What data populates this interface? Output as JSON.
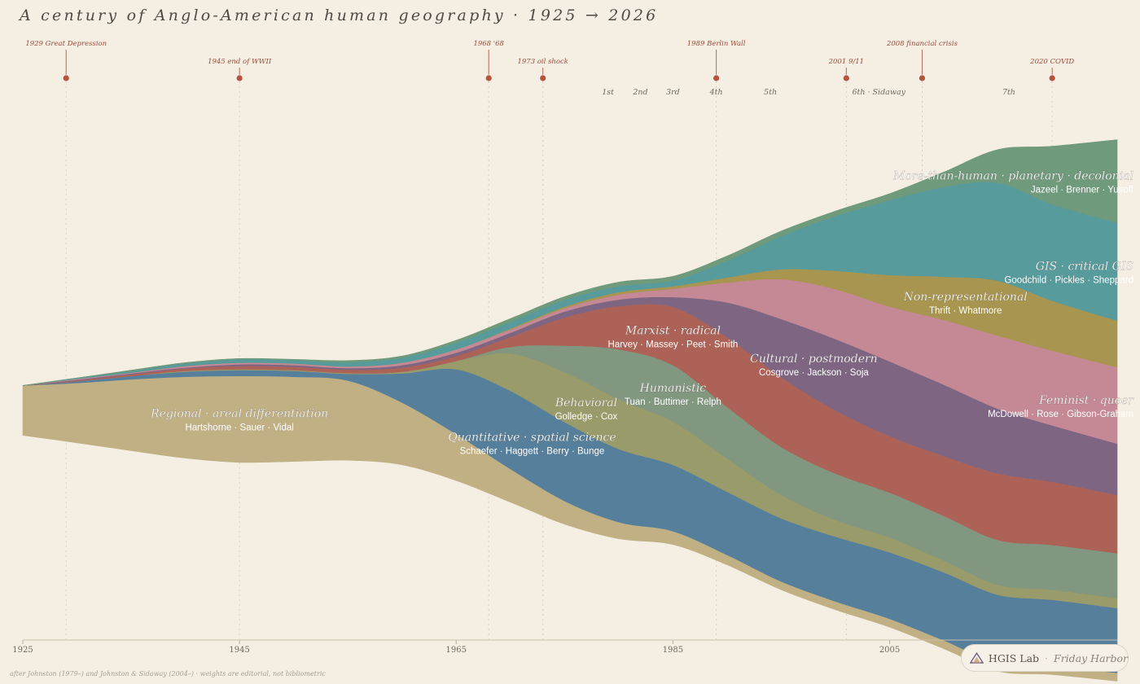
{
  "title": "A century of Anglo-American human geography · 1925 → 2026",
  "footnote": "after Johnston (1979–) and Johnston & Sidaway (2004–) · weights are editorial, not bibliometric",
  "badge": {
    "brand": "HGIS Lab",
    "separator": "·",
    "location": "Friday Harbor",
    "logo_icon": "triangle-logo-icon"
  },
  "chart_data": {
    "type": "area",
    "subtype": "streamgraph",
    "x_range": [
      1925,
      2026
    ],
    "x_ticks": [
      1925,
      1945,
      1965,
      1985,
      2005
    ],
    "x_tick_labels": [
      "1925",
      "1945",
      "1965",
      "1985",
      "2005"
    ],
    "events": [
      {
        "year": 1929,
        "label": "1929 Great Depression"
      },
      {
        "year": 1945,
        "label": "1945 end of WWII"
      },
      {
        "year": 1968,
        "label": "1968 '68"
      },
      {
        "year": 1973,
        "label": "1973 oil shock"
      },
      {
        "year": 1989,
        "label": "1989 Berlin Wall"
      },
      {
        "year": 2001,
        "label": "2001 9/11"
      },
      {
        "year": 2008,
        "label": "2008 financial crisis"
      },
      {
        "year": 2020,
        "label": "2020 COVID"
      }
    ],
    "editions": [
      {
        "year": 1979,
        "label": "1st"
      },
      {
        "year": 1982,
        "label": "2nd"
      },
      {
        "year": 1985,
        "label": "3rd"
      },
      {
        "year": 1989,
        "label": "4th"
      },
      {
        "year": 1994,
        "label": "5th"
      },
      {
        "year": 2004,
        "label": "6th · Sidaway"
      },
      {
        "year": 2016,
        "label": "7th"
      }
    ],
    "x": [
      1925,
      1930,
      1935,
      1940,
      1945,
      1950,
      1955,
      1960,
      1965,
      1970,
      1975,
      1980,
      1985,
      1990,
      1995,
      2000,
      2005,
      2010,
      2015,
      2020,
      2026
    ],
    "series": [
      {
        "name": "Regional · areal differentiation",
        "authors": "Hartshorne · Sauer · Vidal",
        "color": "#c0b084",
        "values": [
          60,
          72,
          86,
          98,
          104,
          102,
          96,
          75,
          56,
          40,
          28,
          20,
          16,
          12,
          10,
          10,
          10,
          10,
          10,
          10,
          10
        ]
      },
      {
        "name": "Quantitative · spatial science",
        "authors": "Schaefer · Haggett · Berry · Bunge",
        "color": "#567f9c",
        "values": [
          0,
          2,
          4,
          6,
          7,
          7,
          8,
          35,
          78,
          94,
          95,
          88,
          80,
          76,
          76,
          78,
          80,
          82,
          82,
          80,
          78
        ]
      },
      {
        "name": "Behavioral",
        "authors": "Golledge · Cox",
        "color": "#9a9b6a",
        "values": [
          0,
          0,
          0,
          1,
          1,
          1,
          1,
          2,
          10,
          45,
          60,
          60,
          52,
          40,
          28,
          20,
          18,
          14,
          12,
          12,
          12
        ]
      },
      {
        "name": "Humanistic",
        "authors": "Tuan · Buttimer · Relph",
        "color": "#82977f",
        "values": [
          0,
          0,
          0,
          0,
          0,
          0,
          0,
          0,
          0,
          8,
          32,
          60,
          68,
          62,
          58,
          56,
          54,
          54,
          54,
          54,
          54
        ]
      },
      {
        "name": "Marxist · radical",
        "authors": "Harvey · Massey · Peet · Smith",
        "color": "#ad6257",
        "values": [
          0,
          1,
          2,
          3,
          4,
          4,
          4,
          5,
          6,
          12,
          34,
          52,
          70,
          84,
          84,
          76,
          68,
          72,
          80,
          76,
          70
        ]
      },
      {
        "name": "Cultural · postmodern",
        "authors": "Cosgrove · Jackson · Soja",
        "color": "#7e6683",
        "values": [
          0,
          1,
          1,
          1,
          2,
          2,
          2,
          3,
          4,
          5,
          7,
          8,
          12,
          42,
          70,
          86,
          90,
          86,
          78,
          68,
          62
        ]
      },
      {
        "name": "Feminist · queer",
        "authors": "McDowell · Rose · Gibson-Graham",
        "color": "#c48995",
        "values": [
          0,
          1,
          1,
          2,
          2,
          2,
          2,
          3,
          4,
          4,
          4,
          6,
          10,
          24,
          48,
          60,
          66,
          78,
          88,
          90,
          92
        ]
      },
      {
        "name": "Non-representational",
        "authors": "Thrift · Whatmore",
        "color": "#a8954f",
        "values": [
          0,
          0,
          0,
          0,
          0,
          0,
          0,
          0,
          0,
          1,
          2,
          3,
          3,
          6,
          12,
          22,
          38,
          52,
          66,
          60,
          56
        ]
      },
      {
        "name": "GIS · critical GIS",
        "authors": "Goodchild · Pickles · Sheppard",
        "color": "#579b9c",
        "values": [
          0,
          1,
          2,
          3,
          4,
          4,
          5,
          6,
          8,
          8,
          8,
          7,
          7,
          20,
          40,
          66,
          90,
          108,
          118,
          116,
          118
        ]
      },
      {
        "name": "More-than-human · planetary · decolonial",
        "authors": "Jazeel · Brenner · Yusoff",
        "color": "#6f9a7b",
        "values": [
          0,
          0,
          1,
          1,
          1,
          1,
          2,
          2,
          3,
          4,
          4,
          5,
          5,
          6,
          6,
          6,
          8,
          18,
          40,
          70,
          100
        ]
      }
    ]
  }
}
